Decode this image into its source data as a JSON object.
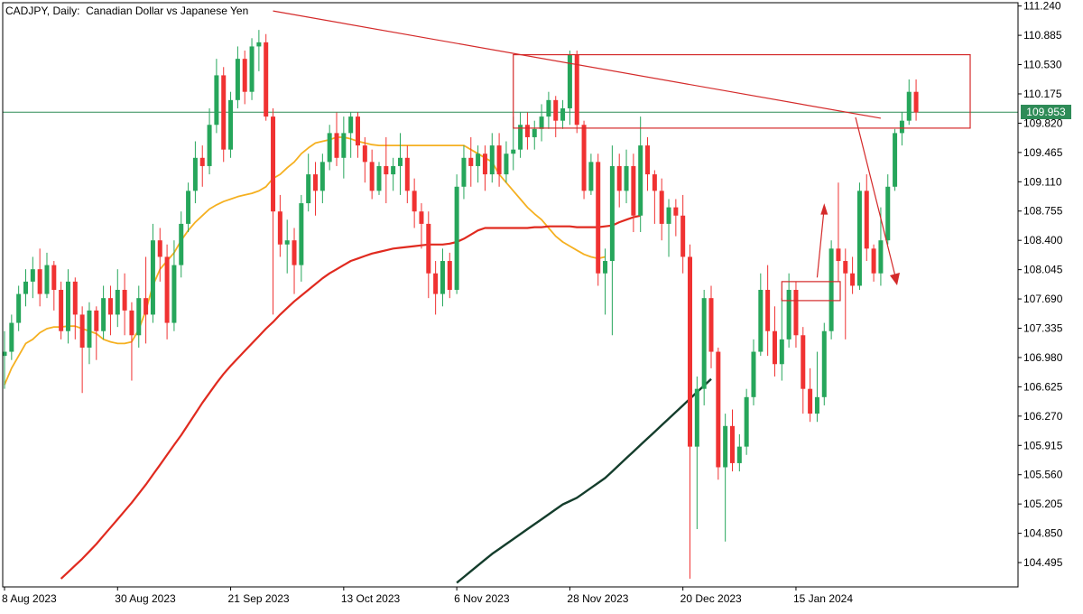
{
  "colors": {
    "background": "#ffffff",
    "bull": "#26a65b",
    "bear": "#f03232",
    "wick": "#26a65b",
    "ma_fast": "#f5b020",
    "ma_mid": "#e02a1f",
    "ma_slow": "#143d2c",
    "drawings": "#d42a2a",
    "price_line": "#2e8b57",
    "axis": "#000000"
  },
  "chart_data": {
    "type": "candlestick",
    "symbol": "CADJPY",
    "timeframe": "Daily",
    "description": "Canadian Dollar vs Japanese Yen",
    "title": "CADJPY, Daily:  Canadian Dollar vs Japanese Yen",
    "current_price": "109.953",
    "ylim": [
      104.2,
      111.28
    ],
    "y_ticks": [
      "111.240",
      "110.885",
      "110.530",
      "110.175",
      "109.820",
      "109.465",
      "109.110",
      "108.755",
      "108.400",
      "108.045",
      "107.690",
      "107.335",
      "106.980",
      "106.625",
      "106.270",
      "105.915",
      "105.560",
      "105.205",
      "104.850",
      "104.495"
    ],
    "x_tick_labels": [
      {
        "label": "8 Aug 2023",
        "index": 0
      },
      {
        "label": "30 Aug 2023",
        "index": 16
      },
      {
        "label": "21 Sep 2023",
        "index": 32
      },
      {
        "label": "13 Oct 2023",
        "index": 48
      },
      {
        "label": "6 Nov 2023",
        "index": 64
      },
      {
        "label": "28 Nov 2023",
        "index": 80
      },
      {
        "label": "20 Dec 2023",
        "index": 96
      },
      {
        "label": "15 Jan 2024",
        "index": 112
      }
    ],
    "candles": [
      [
        107.0,
        107.05,
        106.6,
        107.3
      ],
      [
        107.05,
        107.4,
        106.95,
        107.5
      ],
      [
        107.4,
        107.75,
        107.3,
        107.85
      ],
      [
        107.75,
        107.9,
        107.6,
        108.05
      ],
      [
        107.9,
        108.05,
        107.7,
        108.2
      ],
      [
        108.05,
        107.75,
        107.6,
        108.3
      ],
      [
        107.75,
        108.1,
        107.7,
        108.25
      ],
      [
        108.1,
        107.8,
        107.55,
        108.15
      ],
      [
        107.8,
        107.3,
        107.2,
        107.9
      ],
      [
        107.3,
        107.9,
        107.15,
        108.05
      ],
      [
        107.9,
        107.5,
        107.2,
        107.95
      ],
      [
        107.5,
        107.1,
        106.55,
        107.6
      ],
      [
        107.1,
        107.55,
        106.9,
        107.65
      ],
      [
        107.55,
        107.3,
        106.95,
        107.6
      ],
      [
        107.3,
        107.7,
        107.2,
        107.85
      ],
      [
        107.7,
        107.5,
        107.25,
        107.85
      ],
      [
        107.5,
        107.8,
        107.35,
        108.05
      ],
      [
        107.8,
        107.55,
        107.25,
        108.0
      ],
      [
        107.55,
        107.25,
        106.7,
        107.65
      ],
      [
        107.25,
        107.7,
        107.1,
        107.85
      ],
      [
        107.7,
        107.5,
        107.15,
        108.2
      ],
      [
        107.5,
        108.4,
        107.4,
        108.6
      ],
      [
        108.4,
        108.2,
        107.9,
        108.55
      ],
      [
        108.2,
        107.4,
        107.2,
        108.35
      ],
      [
        107.4,
        108.1,
        107.3,
        108.4
      ],
      [
        108.1,
        108.6,
        107.95,
        108.75
      ],
      [
        108.6,
        109.0,
        108.5,
        109.1
      ],
      [
        109.0,
        109.4,
        108.85,
        109.6
      ],
      [
        109.4,
        109.3,
        109.05,
        109.55
      ],
      [
        109.3,
        109.8,
        109.2,
        110.0
      ],
      [
        109.8,
        110.4,
        109.7,
        110.6
      ],
      [
        110.4,
        109.5,
        109.35,
        110.5
      ],
      [
        109.5,
        110.1,
        109.4,
        110.2
      ],
      [
        110.1,
        110.6,
        110.0,
        110.75
      ],
      [
        110.6,
        110.2,
        110.05,
        110.7
      ],
      [
        110.2,
        110.75,
        110.1,
        110.85
      ],
      [
        110.75,
        110.8,
        110.45,
        110.95
      ],
      [
        110.8,
        109.9,
        109.85,
        110.9
      ],
      [
        109.9,
        108.75,
        107.5,
        110.0
      ],
      [
        108.75,
        108.35,
        108.2,
        108.95
      ],
      [
        108.35,
        108.4,
        108.0,
        108.65
      ],
      [
        108.4,
        108.1,
        107.75,
        108.55
      ],
      [
        108.1,
        108.85,
        107.9,
        108.95
      ],
      [
        108.85,
        109.2,
        108.75,
        109.45
      ],
      [
        109.2,
        109.0,
        108.7,
        109.35
      ],
      [
        109.0,
        109.35,
        108.85,
        109.45
      ],
      [
        109.35,
        109.7,
        109.25,
        109.8
      ],
      [
        109.7,
        109.4,
        109.3,
        109.95
      ],
      [
        109.4,
        109.7,
        109.15,
        109.9
      ],
      [
        109.7,
        109.9,
        109.4,
        109.95
      ],
      [
        109.9,
        109.55,
        109.4,
        109.95
      ],
      [
        109.55,
        109.35,
        109.1,
        109.65
      ],
      [
        109.35,
        109.0,
        108.9,
        109.5
      ],
      [
        109.0,
        109.3,
        108.95,
        109.35
      ],
      [
        109.3,
        109.2,
        108.85,
        109.65
      ],
      [
        109.2,
        109.3,
        109.0,
        109.4
      ],
      [
        109.3,
        109.4,
        108.95,
        109.7
      ],
      [
        109.4,
        109.0,
        108.85,
        109.55
      ],
      [
        109.0,
        108.75,
        108.55,
        109.15
      ],
      [
        108.75,
        108.6,
        108.3,
        108.85
      ],
      [
        108.6,
        108.0,
        107.7,
        108.75
      ],
      [
        108.0,
        107.75,
        107.5,
        108.15
      ],
      [
        107.75,
        108.15,
        107.6,
        108.3
      ],
      [
        108.15,
        107.8,
        107.7,
        108.25
      ],
      [
        107.8,
        109.05,
        107.75,
        109.2
      ],
      [
        109.05,
        109.4,
        108.9,
        109.55
      ],
      [
        109.4,
        109.3,
        109.05,
        109.65
      ],
      [
        109.3,
        109.45,
        109.1,
        109.55
      ],
      [
        109.45,
        109.2,
        109.0,
        109.55
      ],
      [
        109.2,
        109.55,
        109.1,
        109.7
      ],
      [
        109.55,
        109.2,
        109.05,
        109.7
      ],
      [
        109.2,
        109.45,
        109.1,
        109.6
      ],
      [
        109.45,
        109.5,
        109.25,
        109.9
      ],
      [
        109.5,
        109.8,
        109.4,
        109.95
      ],
      [
        109.8,
        109.65,
        109.5,
        109.95
      ],
      [
        109.65,
        109.75,
        109.5,
        109.85
      ],
      [
        109.75,
        109.9,
        109.6,
        110.05
      ],
      [
        109.9,
        110.1,
        109.75,
        110.2
      ],
      [
        110.1,
        109.85,
        109.65,
        110.15
      ],
      [
        109.85,
        110.0,
        109.75,
        110.1
      ],
      [
        110.0,
        110.65,
        109.8,
        110.7
      ],
      [
        110.65,
        109.8,
        109.7,
        110.7
      ],
      [
        109.8,
        109.0,
        108.9,
        109.85
      ],
      [
        109.0,
        109.35,
        108.95,
        109.45
      ]
    ],
    "candles_part2": [
      [
        109.35,
        108.0,
        107.85,
        109.45
      ],
      [
        108.0,
        108.15,
        107.5,
        108.3
      ],
      [
        108.15,
        109.3,
        107.25,
        109.55
      ],
      [
        109.3,
        109.0,
        108.8,
        109.45
      ],
      [
        109.0,
        109.3,
        108.85,
        109.5
      ],
      [
        109.3,
        108.7,
        108.5,
        109.45
      ],
      [
        108.7,
        109.55,
        108.5,
        109.9
      ],
      [
        109.55,
        109.2,
        109.0,
        109.65
      ],
      [
        109.2,
        109.0,
        108.6,
        109.25
      ],
      [
        109.0,
        108.6,
        108.4,
        109.15
      ],
      [
        108.6,
        108.8,
        108.2,
        108.9
      ],
      [
        108.8,
        108.7,
        108.45,
        108.9
      ],
      [
        108.7,
        108.2,
        108.0,
        108.95
      ],
      [
        108.2,
        105.9,
        104.3,
        108.35
      ],
      [
        105.9,
        106.6,
        104.9,
        106.75
      ],
      [
        106.6,
        107.7,
        106.4,
        107.8
      ],
      [
        107.7,
        107.05,
        106.85,
        107.85
      ],
      [
        107.05,
        105.65,
        105.5,
        107.1
      ],
      [
        105.65,
        106.15,
        104.75,
        106.3
      ],
      [
        106.15,
        105.7,
        105.6,
        106.35
      ],
      [
        105.7,
        105.9,
        105.6,
        106.05
      ],
      [
        105.9,
        106.5,
        105.8,
        106.6
      ],
      [
        106.5,
        107.05,
        106.4,
        107.2
      ],
      [
        107.05,
        107.8,
        107.0,
        108.0
      ],
      [
        107.8,
        107.3,
        107.0,
        108.1
      ],
      [
        107.3,
        106.9,
        106.75,
        107.6
      ],
      [
        106.9,
        107.2,
        106.7,
        107.7
      ],
      [
        107.2,
        107.8,
        107.1,
        108.0
      ],
      [
        107.8,
        107.25,
        107.1,
        107.9
      ],
      [
        107.25,
        106.6,
        106.3,
        107.35
      ],
      [
        106.6,
        106.3,
        106.2,
        106.85
      ],
      [
        106.3,
        106.5,
        106.2,
        107.05
      ],
      [
        106.5,
        107.3,
        106.4,
        107.4
      ],
      [
        107.3,
        108.3,
        107.2,
        108.4
      ],
      [
        108.3,
        108.15,
        107.9,
        109.1
      ],
      [
        108.15,
        108.0,
        107.2,
        108.3
      ],
      [
        108.0,
        107.85,
        107.75,
        108.2
      ],
      [
        107.85,
        109.0,
        107.8,
        109.1
      ],
      [
        109.0,
        108.3,
        108.15,
        109.2
      ],
      [
        108.3,
        108.0,
        107.9,
        108.35
      ],
      [
        108.0,
        108.4,
        107.85,
        108.8
      ],
      [
        108.4,
        109.05,
        108.35,
        109.2
      ],
      [
        109.05,
        109.7,
        109.0,
        109.75
      ],
      [
        109.7,
        109.85,
        109.55,
        109.95
      ],
      [
        109.85,
        110.2,
        109.8,
        110.35
      ],
      [
        110.2,
        109.95,
        109.85,
        110.35
      ]
    ],
    "ma_fast": {
      "start": 0,
      "values": [
        106.65,
        106.85,
        107.0,
        107.15,
        107.2,
        107.28,
        107.33,
        107.35,
        107.35,
        107.36,
        107.36,
        107.33,
        107.3,
        107.27,
        107.2,
        107.17,
        107.15,
        107.15,
        107.17,
        107.32,
        107.55,
        107.85,
        108.05,
        108.15,
        108.25,
        108.4,
        108.52,
        108.62,
        108.7,
        108.78,
        108.83,
        108.87,
        108.9,
        108.93,
        108.95,
        108.97,
        109.0,
        109.05,
        109.15,
        109.2,
        109.28,
        109.35,
        109.45,
        109.52,
        109.58,
        109.6,
        109.62,
        109.65,
        109.65,
        109.63,
        109.6,
        109.58,
        109.56,
        109.55,
        109.55,
        109.55,
        109.55,
        109.55,
        109.55,
        109.55,
        109.55,
        109.55,
        109.55,
        109.55,
        109.55,
        109.55,
        109.5,
        109.45,
        109.4,
        109.35,
        109.2,
        109.1,
        109.0,
        108.9,
        108.8,
        108.72,
        108.65,
        108.55,
        108.45,
        108.38,
        108.33,
        108.28,
        108.23,
        108.2,
        108.18,
        108.2
      ]
    },
    "ma_mid": {
      "start": 8,
      "values": [
        104.3,
        104.38,
        104.46,
        104.54,
        104.63,
        104.72,
        104.82,
        104.92,
        105.02,
        105.12,
        105.22,
        105.33,
        105.44,
        105.56,
        105.68,
        105.8,
        105.92,
        106.04,
        106.17,
        106.3,
        106.43,
        106.55,
        106.67,
        106.78,
        106.88,
        106.97,
        107.06,
        107.15,
        107.24,
        107.33,
        107.41,
        107.5,
        107.58,
        107.66,
        107.73,
        107.8,
        107.87,
        107.94,
        108.0,
        108.05,
        108.1,
        108.15,
        108.18,
        108.21,
        108.24,
        108.26,
        108.28,
        108.3,
        108.31,
        108.32,
        108.33,
        108.34,
        108.35,
        108.35,
        108.35,
        108.36,
        108.38,
        108.42,
        108.47,
        108.52,
        108.55,
        108.55,
        108.55,
        108.55,
        108.55,
        108.55,
        108.55,
        108.56,
        108.56,
        108.57,
        108.57,
        108.57,
        108.57,
        108.56,
        108.56,
        108.56,
        108.56,
        108.57,
        108.58,
        108.62,
        108.65,
        108.68,
        108.7
      ]
    },
    "ma_slow": {
      "start": 64,
      "values": [
        104.25,
        104.32,
        104.39,
        104.46,
        104.53,
        104.6,
        104.66,
        104.72,
        104.78,
        104.84,
        104.9,
        104.96,
        105.02,
        105.08,
        105.14,
        105.2,
        105.24,
        105.28,
        105.34,
        105.4,
        105.46,
        105.52,
        105.6,
        105.68,
        105.76,
        105.84,
        105.92,
        106.0,
        106.08,
        106.16,
        106.24,
        106.32,
        106.4,
        106.48,
        106.56,
        106.64,
        106.72
      ]
    }
  }
}
